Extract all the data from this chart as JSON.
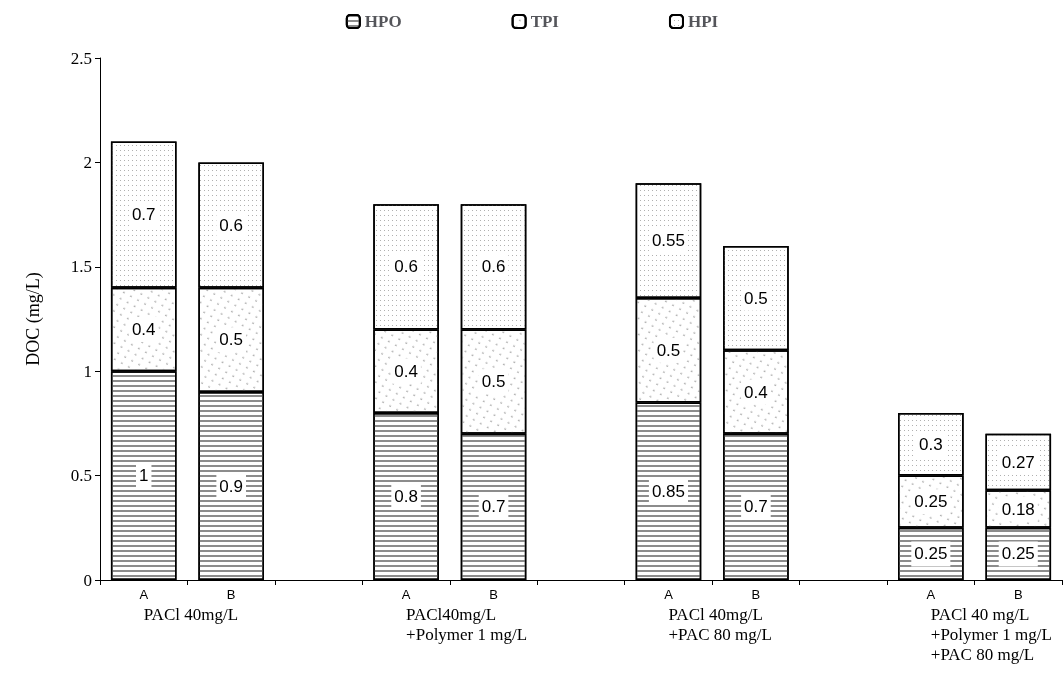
{
  "chart_data": {
    "type": "bar",
    "stacked": true,
    "ylabel": "DOC (mg/L)",
    "categories": [
      "A",
      "B",
      null,
      "A",
      "B",
      null,
      "A",
      "B",
      null,
      "A",
      "B"
    ],
    "series": [
      {
        "name": "HPO",
        "color": "#ffffff",
        "values": [
          1,
          0.9,
          null,
          0.8,
          0.7,
          null,
          0.85,
          0.7,
          null,
          0.25,
          0.25
        ]
      },
      {
        "name": "TPI",
        "color": "#ffffff",
        "values": [
          0.4,
          0.5,
          null,
          0.4,
          0.5,
          null,
          0.5,
          0.4,
          null,
          0.25,
          0.18
        ]
      },
      {
        "name": "HPI",
        "color": "#ffffff",
        "values": [
          0.7,
          0.6,
          null,
          0.6,
          0.6,
          null,
          0.55,
          0.5,
          null,
          0.3,
          0.27
        ]
      }
    ],
    "ylim": [
      0,
      2.5
    ],
    "yticks": [
      0,
      0.5,
      1,
      1.5,
      2,
      2.5
    ],
    "grid": false,
    "legend": "top",
    "data_labels": true,
    "annotations": [
      "PACl 40mg/L",
      "PACl40mg/L\n+Polymer 1 mg/L",
      "PACl 40mg/L\n+PAC 80 mg/L",
      "PACl 40 mg/L\n+Polymer 1 mg/L\n+PAC 80 mg/L"
    ]
  }
}
